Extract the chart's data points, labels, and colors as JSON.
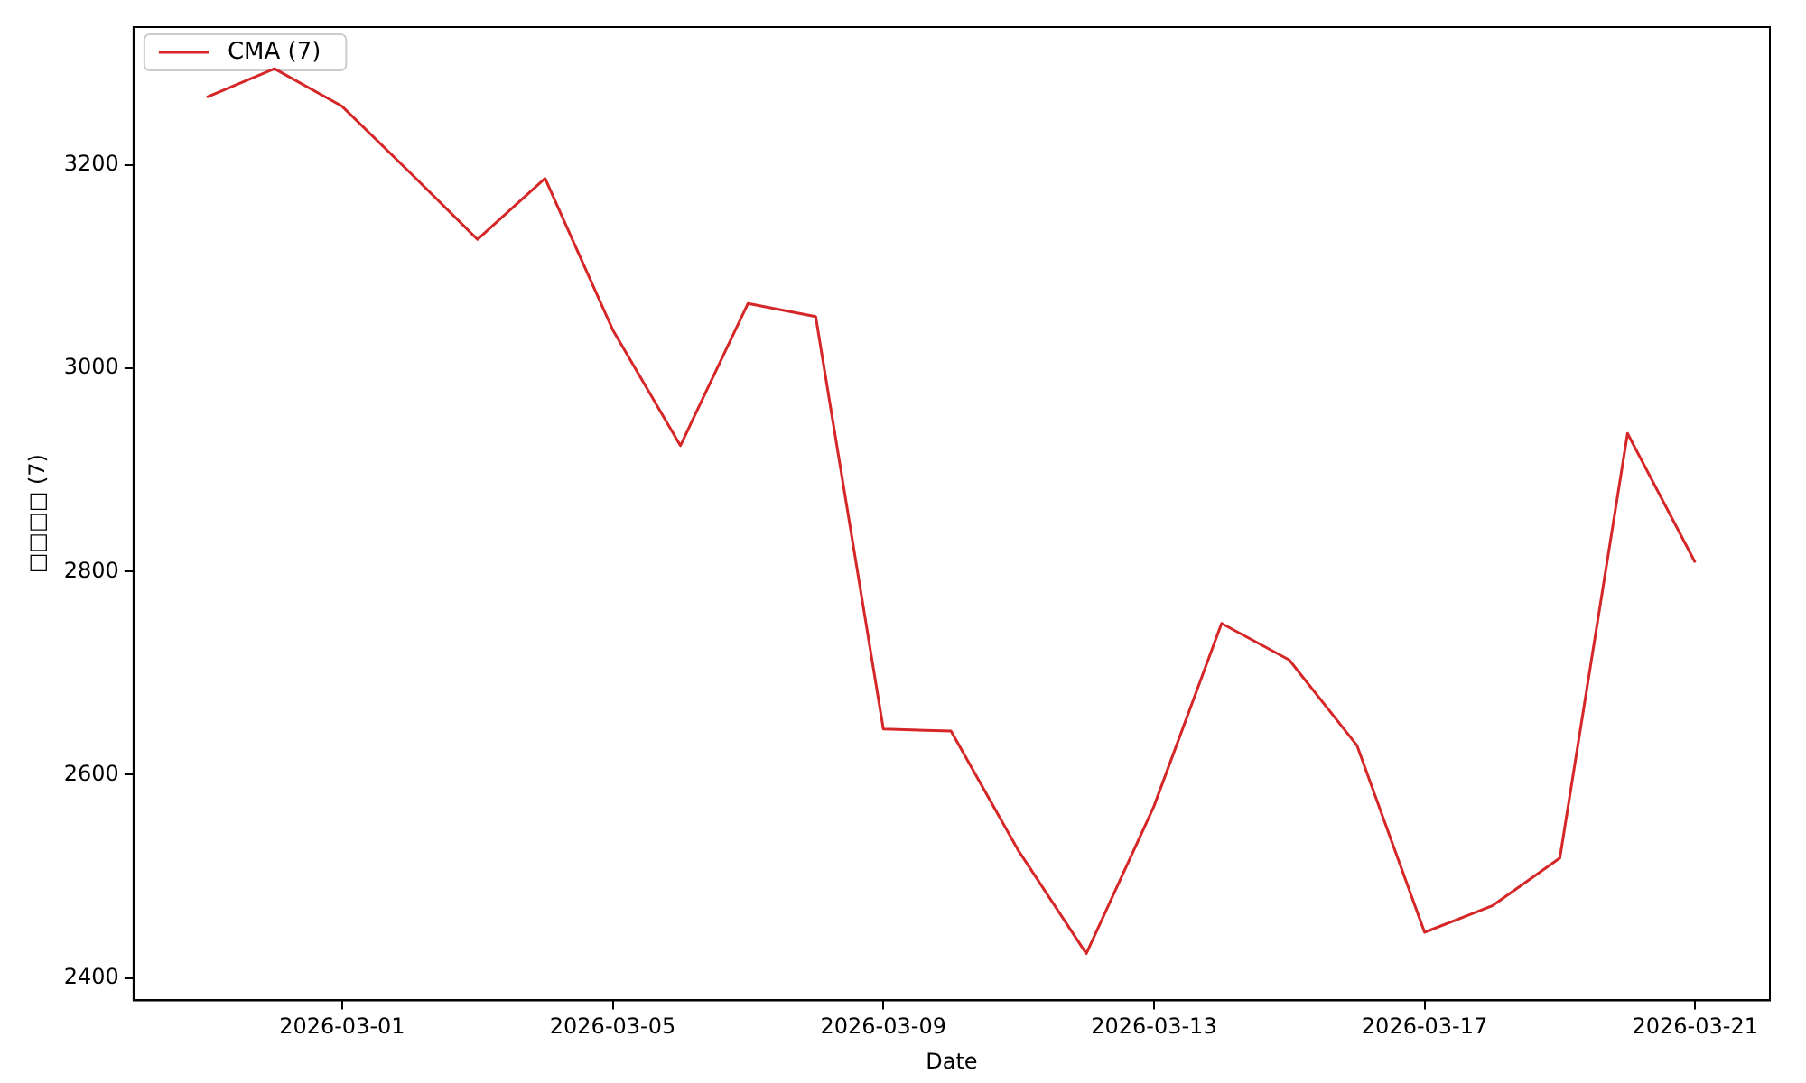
{
  "chart_data": {
    "type": "line",
    "xlabel": "Date",
    "ylabel": "□□□□ (7)",
    "legend": "top left",
    "grid": false,
    "x": [
      "2026-02-27",
      "2026-02-28",
      "2026-03-01",
      "2026-03-02",
      "2026-03-03",
      "2026-03-04",
      "2026-03-05",
      "2026-03-06",
      "2026-03-07",
      "2026-03-08",
      "2026-03-09",
      "2026-03-10",
      "2026-03-11",
      "2026-03-12",
      "2026-03-13",
      "2026-03-14",
      "2026-03-15",
      "2026-03-16",
      "2026-03-17",
      "2026-03-18",
      "2026-03-19",
      "2026-03-20",
      "2026-03-21"
    ],
    "series": [
      {
        "name": "CMA (7)",
        "color": "#d62728",
        "values": [
          3267,
          3295,
          3258,
          3193,
          3127,
          3187,
          3038,
          2924,
          3064,
          3051,
          2645,
          2643,
          2525,
          2424,
          2569,
          2749,
          2713,
          2629,
          2445,
          2471,
          2518,
          2936,
          2809
        ]
      }
    ],
    "xlim": [
      "2026-02-25T22:00",
      "2026-03-22T02:30"
    ],
    "xticks": [
      "2026-03-01",
      "2026-03-05",
      "2026-03-09",
      "2026-03-13",
      "2026-03-17",
      "2026-03-21"
    ],
    "ylim": [
      2378,
      3336
    ],
    "yticks": [
      2400,
      2600,
      2800,
      3000,
      3200
    ]
  }
}
